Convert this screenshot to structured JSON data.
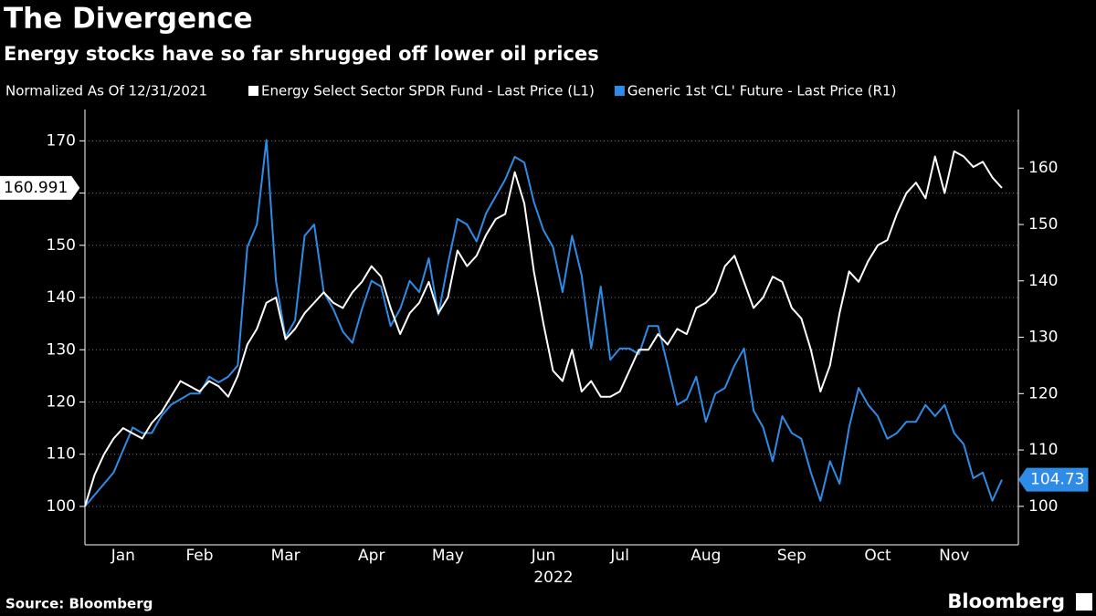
{
  "chart_data": {
    "type": "line",
    "title": "The Divergence",
    "subtitle": "Energy stocks have so far shrugged off lower oil prices",
    "note": "Normalized As Of 12/31/2021",
    "xlabel": "2022",
    "source": "Source: Bloomberg",
    "brand": "Bloomberg",
    "categories": [
      null,
      null,
      null,
      null,
      "Jan",
      null,
      null,
      null,
      null,
      null,
      null,
      null,
      "Feb",
      null,
      null,
      null,
      null,
      null,
      null,
      null,
      null,
      "Mar",
      null,
      null,
      null,
      null,
      null,
      null,
      null,
      null,
      "Apr",
      null,
      null,
      null,
      null,
      null,
      null,
      null,
      "May",
      null,
      null,
      null,
      null,
      null,
      null,
      null,
      null,
      null,
      "Jun",
      null,
      null,
      null,
      null,
      null,
      null,
      null,
      "Jul",
      null,
      null,
      null,
      null,
      null,
      null,
      null,
      null,
      "Aug",
      null,
      null,
      null,
      null,
      null,
      null,
      null,
      null,
      "Sep",
      null,
      null,
      null,
      null,
      null,
      null,
      null,
      null,
      "Oct",
      null,
      null,
      null,
      null,
      null,
      null,
      null,
      "Nov",
      null,
      null,
      null,
      null,
      null
    ],
    "series": [
      {
        "name": "Energy Select Sector SPDR Fund - Last Price (L1)",
        "color": "#ffffff",
        "axis": "y",
        "values": [
          100,
          106,
          110,
          113,
          115,
          114,
          113,
          116,
          118,
          121,
          124,
          123,
          122,
          124,
          123,
          121,
          125,
          131,
          134,
          139,
          140,
          132,
          134,
          137,
          139,
          141,
          139,
          138,
          141,
          143,
          146,
          144,
          138,
          133,
          137,
          139,
          143,
          137,
          140,
          149,
          146,
          148,
          152,
          155,
          156,
          164,
          158,
          145,
          135,
          126,
          124,
          130,
          122,
          124,
          121,
          121,
          122,
          126,
          130,
          130,
          133,
          131,
          134,
          133,
          138,
          139,
          141,
          146,
          148,
          143,
          138,
          140,
          144,
          143,
          138,
          136,
          130,
          122,
          127,
          137,
          145,
          143,
          147,
          150,
          151,
          156,
          160,
          162,
          159,
          167,
          160,
          168,
          167,
          165,
          166,
          163,
          160.991
        ]
      },
      {
        "name": "Generic 1st 'CL' Future - Last Price (R1)",
        "color": "#2e8ce6",
        "axis": "y2",
        "values": [
          100,
          102,
          104,
          106,
          110,
          114,
          113,
          113,
          116,
          118,
          119,
          120,
          120,
          123,
          122,
          123,
          125,
          146,
          150,
          165,
          140,
          130,
          133,
          148,
          150,
          138,
          135,
          131,
          129,
          135,
          140,
          139,
          132,
          135,
          140,
          138,
          144,
          134,
          143,
          151,
          150,
          147,
          152,
          155,
          158,
          162,
          161,
          154,
          149,
          146,
          138,
          148,
          141,
          128,
          139,
          126,
          128,
          128,
          127,
          132,
          132,
          125,
          118,
          119,
          123,
          115,
          120,
          121,
          125,
          128,
          117,
          114,
          108,
          116,
          113,
          112,
          106,
          101,
          108,
          104,
          114,
          121,
          118,
          116,
          112,
          113,
          115,
          115,
          118,
          116,
          118,
          113,
          111,
          105,
          106,
          101,
          104.73
        ]
      }
    ],
    "ylim": [
      93,
      176
    ],
    "yticks": [
      100,
      110,
      120,
      130,
      140,
      150,
      160,
      170
    ],
    "y2lim": [
      93.5,
      170.4
    ],
    "y2ticks": [
      100,
      110,
      120,
      130,
      140,
      150,
      160
    ],
    "grid": true
  }
}
